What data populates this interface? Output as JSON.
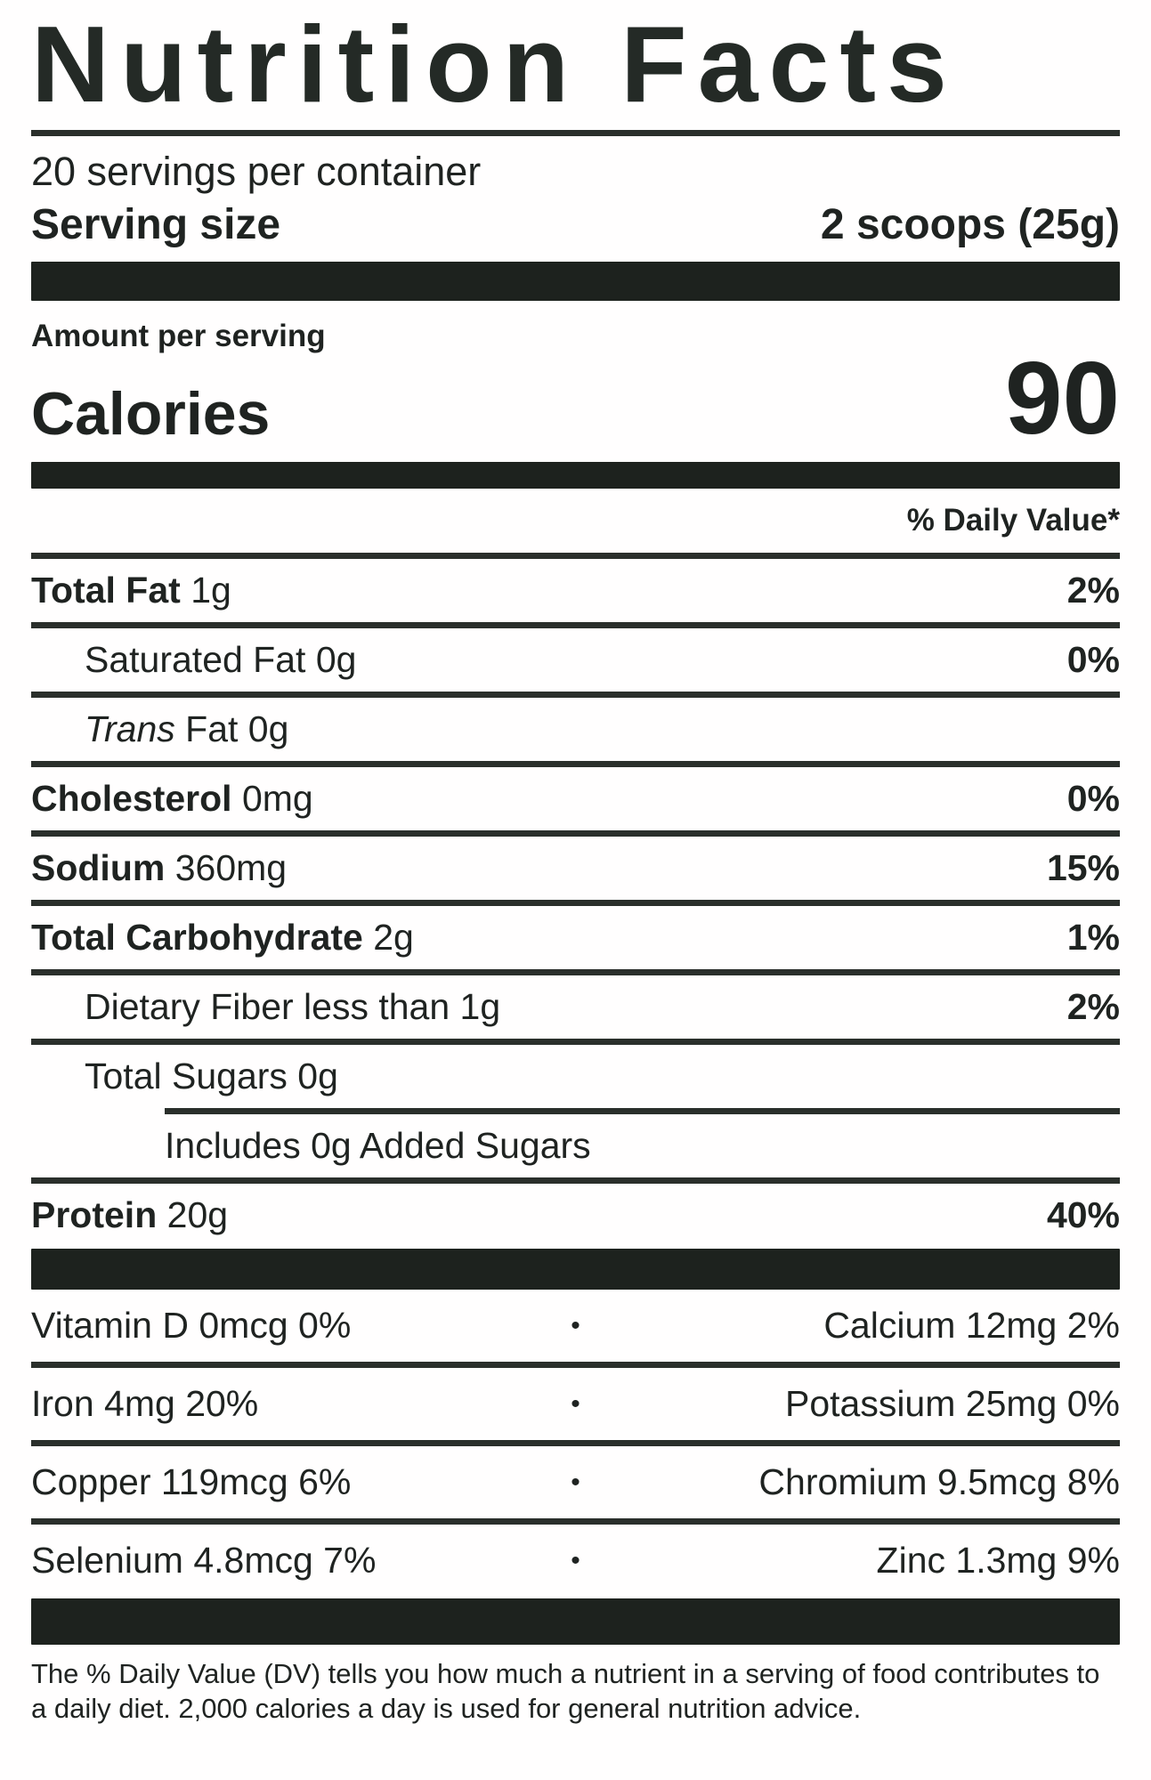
{
  "label": {
    "title": "Nutrition Facts",
    "servings_per_container": "20 servings per container",
    "serving_size_label": "Serving size",
    "serving_size_value": "2 scoops (25g)",
    "amount_per_serving": "Amount per serving",
    "calories_label": "Calories",
    "calories_value": "90",
    "daily_value_header": "% Daily Value*",
    "footnote": "The % Daily Value (DV) tells you how much a nutrient in a serving of food contributes to a daily diet. 2,000 calories a day is used for general nutrition advice.",
    "bullet": "•",
    "colors": {
      "bar": "#1d221e",
      "separator": "#2a2f2b",
      "text": "#1f2321",
      "background": "#fffefe"
    }
  },
  "nutrients": [
    {
      "strong": "Total Fat",
      "em": "",
      "text": " 1g",
      "dv": "2%"
    },
    {
      "strong": "",
      "em": "",
      "text": "Saturated Fat 0g",
      "dv": "0%"
    },
    {
      "strong": "",
      "em": "Trans",
      "text": " Fat 0g",
      "dv": ""
    },
    {
      "strong": "Cholesterol",
      "em": "",
      "text": " 0mg",
      "dv": "0%"
    },
    {
      "strong": "Sodium",
      "em": "",
      "text": " 360mg",
      "dv": "15%"
    },
    {
      "strong": "Total Carbohydrate",
      "em": "",
      "text": " 2g",
      "dv": "1%"
    },
    {
      "strong": "",
      "em": "",
      "text": "Dietary Fiber less than 1g",
      "dv": "2%"
    },
    {
      "strong": "",
      "em": "",
      "text": "Total Sugars 0g",
      "dv": ""
    },
    {
      "strong": "",
      "em": "",
      "text": "Includes 0g Added Sugars",
      "dv": ""
    },
    {
      "strong": "Protein",
      "em": "",
      "text": " 20g",
      "dv": "40%"
    }
  ],
  "micronutrients": [
    {
      "left": "Vitamin D 0mcg 0%",
      "right": "Calcium 12mg 2%"
    },
    {
      "left": "Iron 4mg 20%",
      "right": "Potassium 25mg 0%"
    },
    {
      "left": "Copper 119mcg 6%",
      "right": "Chromium 9.5mcg 8%"
    },
    {
      "left": "Selenium 4.8mcg 7%",
      "right": "Zinc 1.3mg 9%"
    }
  ]
}
